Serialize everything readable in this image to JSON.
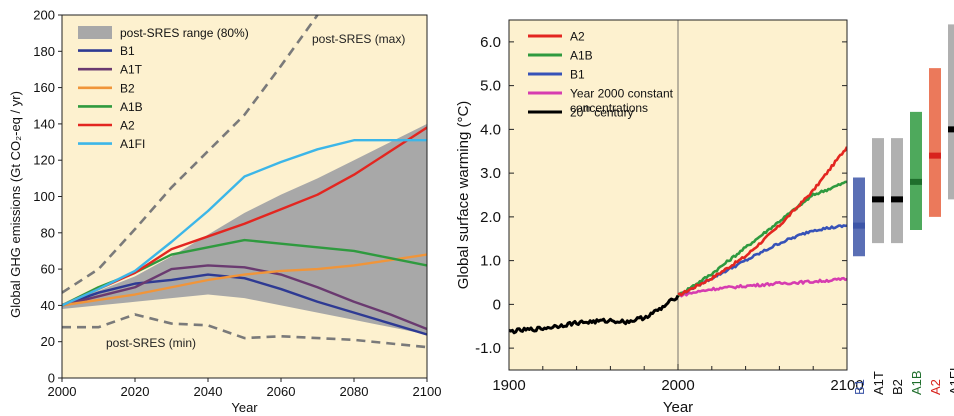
{
  "chart_data": [
    {
      "type": "line",
      "xlabel": "Year",
      "ylabel": "Global GHG emissions (Gt CO₂-eq / yr)",
      "xlim": [
        2000,
        2100
      ],
      "ylim": [
        0,
        200
      ],
      "xticks": [
        "2000",
        "2020",
        "2040",
        "2060",
        "2080",
        "2100"
      ],
      "yticks": [
        "0",
        "20",
        "40",
        "60",
        "80",
        "100",
        "120",
        "140",
        "160",
        "180",
        "200"
      ],
      "legend_position": "top-left",
      "background": "#fdf1cf",
      "band": {
        "name": "post-SRES range (80%)",
        "color": "#a8a8a8",
        "x": [
          2000,
          2010,
          2020,
          2030,
          2040,
          2050,
          2060,
          2070,
          2080,
          2090,
          2100
        ],
        "lower": [
          38,
          40,
          42,
          44,
          46,
          44,
          40,
          36,
          32,
          28,
          24
        ],
        "upper": [
          41,
          48,
          56,
          67,
          79,
          91,
          101,
          110,
          120,
          130,
          140
        ]
      },
      "series": [
        {
          "name": "B1",
          "color": "#2e3a93",
          "x": [
            2000,
            2010,
            2020,
            2030,
            2040,
            2050,
            2060,
            2070,
            2080,
            2090,
            2100
          ],
          "values": [
            40,
            47,
            52,
            54,
            57,
            55,
            49,
            42,
            36,
            30,
            24
          ]
        },
        {
          "name": "A1T",
          "color": "#6a3a70",
          "x": [
            2000,
            2010,
            2020,
            2030,
            2040,
            2050,
            2060,
            2070,
            2080,
            2090,
            2100
          ],
          "values": [
            40,
            45,
            50,
            60,
            62,
            61,
            57,
            50,
            42,
            35,
            27
          ]
        },
        {
          "name": "B2",
          "color": "#f0953a",
          "x": [
            2000,
            2010,
            2020,
            2030,
            2040,
            2050,
            2060,
            2070,
            2080,
            2090,
            2100
          ],
          "values": [
            40,
            43,
            46,
            50,
            54,
            57,
            59,
            60,
            62,
            65,
            68
          ]
        },
        {
          "name": "A1B",
          "color": "#2f9a3f",
          "x": [
            2000,
            2010,
            2020,
            2030,
            2040,
            2050,
            2060,
            2070,
            2080,
            2090,
            2100
          ],
          "values": [
            40,
            50,
            58,
            68,
            72,
            76,
            74,
            72,
            70,
            66,
            62
          ]
        },
        {
          "name": "A2",
          "color": "#e32620",
          "x": [
            2000,
            2010,
            2020,
            2030,
            2040,
            2050,
            2060,
            2070,
            2080,
            2090,
            2100
          ],
          "values": [
            40,
            49,
            58,
            71,
            78,
            85,
            93,
            101,
            112,
            125,
            138
          ]
        },
        {
          "name": "A1FI",
          "color": "#3cb6e8",
          "x": [
            2000,
            2010,
            2020,
            2030,
            2040,
            2050,
            2060,
            2070,
            2080,
            2090,
            2100
          ],
          "values": [
            40,
            49,
            59,
            75,
            92,
            111,
            119,
            126,
            131,
            131,
            131
          ]
        }
      ],
      "dashed": [
        {
          "label": "post-SRES (max)",
          "color": "#7a7a7a",
          "x": [
            2000,
            2010,
            2020,
            2030,
            2040,
            2050,
            2060,
            2070
          ],
          "values": [
            47,
            60,
            82,
            105,
            125,
            145,
            172,
            200
          ]
        },
        {
          "label": "post-SRES (min)",
          "color": "#7a7a7a",
          "x": [
            2000,
            2010,
            2020,
            2030,
            2040,
            2050,
            2060,
            2070,
            2080,
            2090,
            2100
          ],
          "values": [
            28,
            28,
            35,
            30,
            29,
            22,
            23,
            22,
            21,
            19,
            17
          ]
        }
      ],
      "legend": [
        "post-SRES range (80%)",
        "B1",
        "A1T",
        "B2",
        "A1B",
        "A2",
        "A1FI"
      ]
    },
    {
      "type": "line",
      "xlabel": "Year",
      "ylabel": "Global surface warming (°C)",
      "xlim": [
        1900,
        2100
      ],
      "ylim": [
        -1.5,
        6.5
      ],
      "xticks": [
        "1900",
        "2000",
        "2100"
      ],
      "yticks": [
        "-1.0",
        "0",
        "1.0",
        "2.0",
        "3.0",
        "4.0",
        "5.0",
        "6.0"
      ],
      "legend_position": "top-left",
      "background": "#fdf1cf",
      "series": [
        {
          "name": "A2",
          "color": "#e32620",
          "x": [
            2000,
            2020,
            2040,
            2060,
            2080,
            2100
          ],
          "values": [
            0.2,
            0.6,
            1.1,
            1.8,
            2.6,
            3.6
          ]
        },
        {
          "name": "A1B",
          "color": "#2f9a3f",
          "x": [
            2000,
            2020,
            2040,
            2060,
            2080,
            2100
          ],
          "values": [
            0.2,
            0.7,
            1.3,
            1.9,
            2.5,
            2.8
          ]
        },
        {
          "name": "B1",
          "color": "#3652b8",
          "x": [
            2000,
            2020,
            2040,
            2060,
            2080,
            2100
          ],
          "values": [
            0.2,
            0.6,
            1.0,
            1.4,
            1.7,
            1.8
          ]
        },
        {
          "name": "Year 2000 constant concentrations",
          "color": "#d63cb0",
          "x": [
            2000,
            2020,
            2040,
            2060,
            2080,
            2100
          ],
          "values": [
            0.2,
            0.35,
            0.42,
            0.48,
            0.52,
            0.58
          ]
        },
        {
          "name": "20th century",
          "color": "#000000",
          "x": [
            1900,
            1920,
            1940,
            1960,
            1970,
            1980,
            1990,
            2000
          ],
          "values": [
            -0.62,
            -0.55,
            -0.42,
            -0.37,
            -0.4,
            -0.3,
            -0.1,
            0.2
          ]
        }
      ],
      "legend_lines": [
        {
          "text": "A2"
        },
        {
          "text": "A1B"
        },
        {
          "text": "B1"
        },
        {
          "text": "Year 2000 constant",
          "text2": "concentrations"
        },
        {
          "text": "20",
          "sup": "th",
          "tail": " century"
        }
      ],
      "ranges": [
        {
          "name": "B1",
          "color": "#3d56a8",
          "low": 1.1,
          "high": 2.9,
          "best": 1.8,
          "bestColor": "#3d56a8"
        },
        {
          "name": "A1T",
          "color": "#b0b0b0",
          "low": 1.4,
          "high": 3.8,
          "best": 2.4,
          "bestColor": "#000000"
        },
        {
          "name": "B2",
          "color": "#b0b0b0",
          "low": 1.4,
          "high": 3.8,
          "best": 2.4,
          "bestColor": "#000000"
        },
        {
          "name": "A1B",
          "color": "#2f9a3f",
          "low": 1.7,
          "high": 4.4,
          "best": 2.8,
          "bestColor": "#1f6e2c"
        },
        {
          "name": "A2",
          "color": "#e8623e",
          "low": 2.0,
          "high": 5.4,
          "best": 3.4,
          "bestColor": "#d8231d"
        },
        {
          "name": "A1FI",
          "color": "#b0b0b0",
          "low": 2.4,
          "high": 6.4,
          "best": 4.0,
          "bestColor": "#000000"
        }
      ]
    }
  ]
}
